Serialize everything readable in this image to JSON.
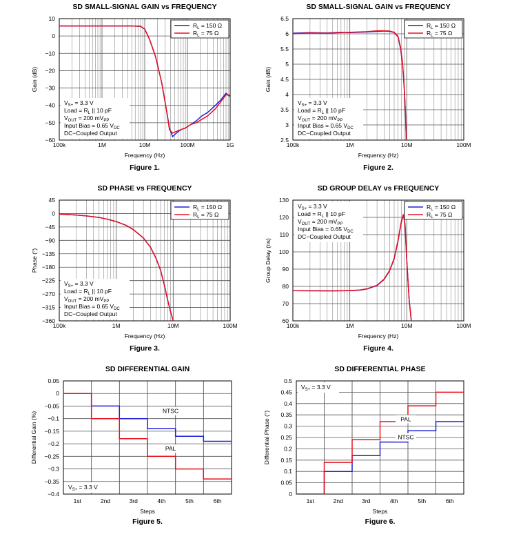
{
  "colors": {
    "blue": "#1f1fd8",
    "red": "#e8101e",
    "grid": "#8a8a8a"
  },
  "chart_data": [
    {
      "type": "line",
      "title": "SD SMALL-SIGNAL GAIN vs FREQUENCY",
      "caption": "Figure 1.",
      "xlabel": "Frequency (Hz)",
      "ylabel": "Gain (dB)",
      "xscale": "log",
      "xlim": [
        100000,
        1000000000
      ],
      "ylim": [
        -60,
        10
      ],
      "xticks": [
        100000,
        1000000,
        10000000,
        100000000,
        1000000000
      ],
      "xticklabels": [
        "100k",
        "1M",
        "10M",
        "100M",
        "1G"
      ],
      "yticks": [
        10,
        0,
        -10,
        -20,
        -30,
        -40,
        -50,
        -60
      ],
      "yticklabels": [
        "10",
        "0",
        "−10",
        "−20",
        "−30",
        "−40",
        "−50",
        "−60"
      ],
      "grid": true,
      "legend_position": "top-right",
      "legend": [
        "Rₗ = 150 Ω",
        "Rₗ = 75 Ω"
      ],
      "legend_html": [
        "R<tspan font-size=\"6\" dy=\"2\">L</tspan><tspan dy=\"-2\"> = 150 Ω</tspan>",
        "R<tspan font-size=\"6\" dy=\"2\">L</tspan><tspan dy=\"-2\"> = 75 Ω</tspan>"
      ],
      "notes": [
        "Vₛ₊ = 3.3 V",
        "Load = Rₗ || 10 pF",
        "Vₒᵤₜ = 200 mVₚₚ",
        "Input Bias = 0.65 Vᴅᴄ",
        "DC−Coupled Output"
      ],
      "notes_html": [
        "V<tspan font-size=\"6\" dy=\"2\">S+</tspan><tspan dy=\"-2\"> = 3.3 V</tspan>",
        "Load = R<tspan font-size=\"6\" dy=\"2\">L</tspan><tspan dy=\"-2\"> || 10 pF</tspan>",
        "V<tspan font-size=\"6\" dy=\"2\">OUT</tspan><tspan dy=\"-2\"> = 200 mV</tspan><tspan font-size=\"6\" dy=\"2\">PP</tspan>",
        "Input Bias = 0.65 V<tspan font-size=\"6\" dy=\"2\">DC</tspan>",
        "DC−Coupled Output"
      ],
      "notes_position": "bottom-left",
      "series": [
        {
          "name": "Rₗ = 150 Ω",
          "color": "blue",
          "x": [
            100000,
            1000000,
            5000000,
            8000000,
            10000000,
            13000000,
            18000000,
            25000000,
            32000000,
            38000000,
            45000000,
            55000000,
            70000000,
            90000000,
            120000000,
            160000000,
            220000000,
            300000000,
            450000000,
            600000000,
            800000000,
            1000000000
          ],
          "y": [
            5.8,
            5.8,
            5.8,
            5.6,
            4,
            -2,
            -12,
            -27,
            -42,
            -53,
            -58,
            -56,
            -54,
            -53,
            -51,
            -49,
            -46,
            -44,
            -40,
            -37,
            -33,
            -35
          ]
        },
        {
          "name": "Rₗ = 75 Ω",
          "color": "red",
          "x": [
            100000,
            1000000,
            5000000,
            8000000,
            10000000,
            13000000,
            18000000,
            25000000,
            32000000,
            38000000,
            45000000,
            55000000,
            70000000,
            90000000,
            120000000,
            160000000,
            220000000,
            300000000,
            450000000,
            600000000,
            800000000,
            1000000000
          ],
          "y": [
            5.8,
            5.8,
            5.8,
            5.6,
            4,
            -2,
            -12,
            -27,
            -42,
            -54,
            -56,
            -55,
            -54,
            -53,
            -51,
            -50,
            -48,
            -46,
            -42,
            -38,
            -34,
            -34
          ]
        }
      ]
    },
    {
      "type": "line",
      "title": "SD SMALL-SIGNAL GAIN vs FREQUENCY",
      "caption": "Figure 2.",
      "xlabel": "Frequency (Hz)",
      "ylabel": "Gain (dB)",
      "xscale": "log",
      "xlim": [
        100000,
        100000000
      ],
      "ylim": [
        2.5,
        6.5
      ],
      "xticks": [
        100000,
        1000000,
        10000000,
        100000000
      ],
      "xticklabels": [
        "100k",
        "1M",
        "10M",
        "100M"
      ],
      "yticks": [
        6.5,
        6,
        5.5,
        5,
        4.5,
        4,
        3.5,
        3,
        2.5
      ],
      "yticklabels": [
        "6.5",
        "6",
        "5.5",
        "5",
        "4.5",
        "4",
        "3.5",
        "3",
        "2.5"
      ],
      "grid": true,
      "legend_position": "top-right",
      "legend": [
        "Rₗ = 150 Ω",
        "Rₗ = 75 Ω"
      ],
      "legend_html": [
        "R<tspan font-size=\"6\" dy=\"2\">L</tspan><tspan dy=\"-2\"> = 150 Ω</tspan>",
        "R<tspan font-size=\"6\" dy=\"2\">L</tspan><tspan dy=\"-2\"> = 75 Ω</tspan>"
      ],
      "notes": [
        "Vₛ₊ = 3.3 V",
        "Load = Rₗ || 10 pF",
        "Vₒᵤₜ = 200 mVₚₚ",
        "Input Bias = 0.65 Vᴅᴄ",
        "DC−Coupled Output"
      ],
      "notes_html": [
        "V<tspan font-size=\"6\" dy=\"2\">S+</tspan><tspan dy=\"-2\"> = 3.3 V</tspan>",
        "Load = R<tspan font-size=\"6\" dy=\"2\">L</tspan><tspan dy=\"-2\"> || 10 pF</tspan>",
        "V<tspan font-size=\"6\" dy=\"2\">OUT</tspan><tspan dy=\"-2\"> = 200 mV</tspan><tspan font-size=\"6\" dy=\"2\">PP</tspan>",
        "Input Bias = 0.65 V<tspan font-size=\"6\" dy=\"2\">DC</tspan>",
        "DC−Coupled Output"
      ],
      "notes_position": "bottom-left",
      "series": [
        {
          "name": "Rₗ = 150 Ω",
          "color": "blue",
          "x": [
            100000,
            200000,
            400000,
            700000,
            1000000,
            2000000,
            3000000,
            4000000,
            5000000,
            6000000,
            7000000,
            7800000,
            8400000,
            9000000,
            9500000,
            9800000
          ],
          "y": [
            6.02,
            6.04,
            6.03,
            6.05,
            6.04,
            6.06,
            6.08,
            6.09,
            6.08,
            6.04,
            5.9,
            5.5,
            5.0,
            4.2,
            3.3,
            2.5
          ]
        },
        {
          "name": "Rₗ = 75 Ω",
          "color": "red",
          "x": [
            100000,
            200000,
            400000,
            700000,
            1000000,
            2000000,
            3000000,
            4000000,
            5000000,
            6000000,
            7000000,
            7800000,
            8400000,
            9000000,
            9500000,
            9800000
          ],
          "y": [
            6.0,
            6.03,
            6.02,
            6.04,
            6.05,
            6.07,
            6.1,
            6.1,
            6.09,
            6.05,
            5.92,
            5.55,
            5.05,
            4.25,
            3.35,
            2.5
          ]
        }
      ]
    },
    {
      "type": "line",
      "title": "SD PHASE vs FREQUENCY",
      "caption": "Figure 3.",
      "xlabel": "Frequency (Hz)",
      "ylabel": "Phase (°)",
      "xscale": "log",
      "xlim": [
        100000,
        100000000
      ],
      "ylim": [
        -360,
        45
      ],
      "xticks": [
        100000,
        1000000,
        10000000,
        100000000
      ],
      "xticklabels": [
        "100k",
        "1M",
        "10M",
        "100M"
      ],
      "yticks": [
        45,
        0,
        -45,
        -90,
        -135,
        -180,
        -225,
        -270,
        -315,
        -360
      ],
      "yticklabels": [
        "45",
        "0",
        "−45",
        "−90",
        "−135",
        "−180",
        "−225",
        "−270",
        "−315",
        "−360"
      ],
      "grid": true,
      "legend_position": "top-right",
      "legend": [
        "Rₗ = 150 Ω",
        "Rₗ = 75 Ω"
      ],
      "legend_html": [
        "R<tspan font-size=\"6\" dy=\"2\">L</tspan><tspan dy=\"-2\"> = 150 Ω</tspan>",
        "R<tspan font-size=\"6\" dy=\"2\">L</tspan><tspan dy=\"-2\"> = 75 Ω</tspan>"
      ],
      "notes": [
        "Vₛ₊ = 3.3 V",
        "Load = Rₗ || 10 pF",
        "Vₒᵤₜ = 200 mVₚₚ",
        "Input Bias = 0.65 Vᴅᴄ",
        "DC−Coupled Output"
      ],
      "notes_html": [
        "V<tspan font-size=\"6\" dy=\"2\">S+</tspan><tspan dy=\"-2\"> = 3.3 V</tspan>",
        "Load = R<tspan font-size=\"6\" dy=\"2\">L</tspan><tspan dy=\"-2\"> || 10 pF</tspan>",
        "V<tspan font-size=\"6\" dy=\"2\">OUT</tspan><tspan dy=\"-2\"> = 200 mV</tspan><tspan font-size=\"6\" dy=\"2\">PP</tspan>",
        "Input Bias = 0.65 V<tspan font-size=\"6\" dy=\"2\">DC</tspan>",
        "DC−Coupled Output"
      ],
      "notes_position": "bottom-left",
      "series": [
        {
          "name": "Rₗ = 150 Ω",
          "color": "blue",
          "x": [
            100000,
            200000,
            300000,
            500000,
            700000,
            1000000,
            1500000,
            2000000,
            3000000,
            4000000,
            5000000,
            6000000,
            7000000,
            8000000,
            9000000,
            10000000
          ],
          "y": [
            -2,
            -5,
            -8,
            -13,
            -19,
            -27,
            -40,
            -54,
            -82,
            -113,
            -150,
            -190,
            -240,
            -290,
            -330,
            -360
          ]
        },
        {
          "name": "Rₗ = 75 Ω",
          "color": "red",
          "x": [
            100000,
            200000,
            300000,
            500000,
            700000,
            1000000,
            1500000,
            2000000,
            3000000,
            4000000,
            5000000,
            6000000,
            7000000,
            8000000,
            9000000,
            10000000
          ],
          "y": [
            -2,
            -5,
            -8,
            -13,
            -19,
            -27,
            -40,
            -54,
            -82,
            -113,
            -150,
            -190,
            -240,
            -290,
            -330,
            -360
          ]
        }
      ]
    },
    {
      "type": "line",
      "title": "SD GROUP DELAY vs FREQUENCY",
      "caption": "Figure 4.",
      "xlabel": "Frequency (Hz)",
      "ylabel": "Group Delay (ns)",
      "xscale": "log",
      "xlim": [
        100000,
        100000000
      ],
      "ylim": [
        60,
        130
      ],
      "xticks": [
        100000,
        1000000,
        10000000,
        100000000
      ],
      "xticklabels": [
        "100k",
        "1M",
        "10M",
        "100M"
      ],
      "yticks": [
        130,
        120,
        110,
        100,
        90,
        80,
        70,
        60
      ],
      "yticklabels": [
        "130",
        "120",
        "110",
        "100",
        "90",
        "80",
        "70",
        "60"
      ],
      "grid": true,
      "legend_position": "top-right",
      "legend": [
        "Rₗ = 150 Ω",
        "Rₗ = 75 Ω"
      ],
      "legend_html": [
        "R<tspan font-size=\"6\" dy=\"2\">L</tspan><tspan dy=\"-2\"> = 150 Ω</tspan>",
        "R<tspan font-size=\"6\" dy=\"2\">L</tspan><tspan dy=\"-2\"> = 75 Ω</tspan>"
      ],
      "notes": [
        "Vₛ₊ = 3.3 V",
        "Load = Rₗ || 10 pF",
        "Vₒᵤₜ = 200 mVₚₚ",
        "Input Bias = 0.65 Vᴅᴄ",
        "DC−Coupled Output"
      ],
      "notes_html": [
        "V<tspan font-size=\"6\" dy=\"2\">S+</tspan><tspan dy=\"-2\"> = 3.3 V</tspan>",
        "Load = R<tspan font-size=\"6\" dy=\"2\">L</tspan><tspan dy=\"-2\"> || 10 pF</tspan>",
        "V<tspan font-size=\"6\" dy=\"2\">OUT</tspan><tspan dy=\"-2\"> = 200 mV</tspan><tspan font-size=\"6\" dy=\"2\">PP</tspan>",
        "Input Bias = 0.65 V<tspan font-size=\"6\" dy=\"2\">DC</tspan>",
        "DC−Coupled Output"
      ],
      "notes_position": "top-left",
      "series": [
        {
          "name": "Rₗ = 150 Ω",
          "color": "blue",
          "x": [
            100000,
            200000,
            500000,
            1000000,
            1500000,
            2000000,
            3000000,
            4000000,
            5000000,
            6000000,
            7000000,
            8000000,
            8700000,
            9300000,
            10000000,
            11000000,
            12000000
          ],
          "y": [
            77.5,
            77.5,
            77.4,
            77.5,
            77.8,
            78.5,
            80.5,
            84,
            89,
            96,
            106,
            117,
            121.5,
            116,
            95,
            72,
            60
          ]
        },
        {
          "name": "Rₗ = 75 Ω",
          "color": "red",
          "x": [
            100000,
            200000,
            500000,
            1000000,
            1500000,
            2000000,
            3000000,
            4000000,
            5000000,
            6000000,
            7000000,
            8000000,
            8700000,
            9300000,
            10000000,
            11000000,
            12000000
          ],
          "y": [
            77.5,
            77.4,
            77.4,
            77.6,
            77.9,
            78.6,
            80.7,
            84.2,
            89.3,
            96.3,
            106.5,
            117.5,
            121.8,
            116,
            95,
            72,
            60
          ]
        }
      ]
    },
    {
      "type": "step",
      "title": "SD DIFFERENTIAL GAIN",
      "caption": "Figure 5.",
      "xlabel": "Steps",
      "ylabel": "Differential Gain (%)",
      "categories": [
        "1st",
        "2nd",
        "3rd",
        "4th",
        "5th",
        "6th"
      ],
      "ylim": [
        -0.4,
        0.05
      ],
      "yticks": [
        0.05,
        0,
        -0.05,
        -0.1,
        -0.15,
        -0.2,
        -0.25,
        -0.3,
        -0.35,
        -0.4
      ],
      "yticklabels": [
        "0.05",
        "0",
        "−0.05",
        "−0.1",
        "−0.15",
        "−0.2",
        "−0.25",
        "−0.3",
        "−0.35",
        "−0.4"
      ],
      "grid": true,
      "notes": [
        "Vₛ₊ = 3.3 V"
      ],
      "notes_html": [
        "V<tspan font-size=\"6\" dy=\"2\">S+</tspan><tspan dy=\"-2\"> = 3.3 V</tspan>"
      ],
      "notes_position": "bottom-left",
      "labels": [
        {
          "text": "NTSC",
          "category": 3.8,
          "y": -0.075
        },
        {
          "text": "PAL",
          "category": 3.8,
          "y": -0.225
        }
      ],
      "series": [
        {
          "name": "NTSC",
          "color": "blue",
          "values": [
            0,
            -0.05,
            -0.1,
            -0.14,
            -0.17,
            -0.19
          ]
        },
        {
          "name": "PAL",
          "color": "red",
          "values": [
            0,
            -0.1,
            -0.18,
            -0.25,
            -0.3,
            -0.34
          ]
        }
      ]
    },
    {
      "type": "step",
      "title": "SD DIFFERENTIAL PHASE",
      "caption": "Figure 6.",
      "xlabel": "Steps",
      "ylabel": "Differential Phase (°)",
      "categories": [
        "1st",
        "2nd",
        "3rd",
        "4th",
        "5th",
        "6th"
      ],
      "ylim": [
        0,
        0.5
      ],
      "yticks": [
        0.5,
        0.45,
        0.4,
        0.35,
        0.3,
        0.25,
        0.2,
        0.15,
        0.1,
        0.05,
        0
      ],
      "yticklabels": [
        "0.5",
        "0.45",
        "0.4",
        "0.35",
        "0.3",
        "0.25",
        "0.2",
        "0.15",
        "0.1",
        "0.05",
        "0"
      ],
      "grid": true,
      "notes": [
        "Vₛ₊ = 3.3 V"
      ],
      "notes_html": [
        "V<tspan font-size=\"6\" dy=\"2\">S+</tspan><tspan dy=\"-2\"> = 3.3 V</tspan>"
      ],
      "notes_position": "top-left",
      "labels": [
        {
          "text": "PAL",
          "category": 3.9,
          "y": 0.325
        },
        {
          "text": "NTSC",
          "category": 3.9,
          "y": 0.245
        }
      ],
      "series": [
        {
          "name": "NTSC",
          "color": "blue",
          "values": [
            0,
            0.1,
            0.17,
            0.23,
            0.28,
            0.32
          ]
        },
        {
          "name": "PAL",
          "color": "red",
          "values": [
            0,
            0.14,
            0.24,
            0.32,
            0.39,
            0.45
          ]
        }
      ]
    }
  ]
}
